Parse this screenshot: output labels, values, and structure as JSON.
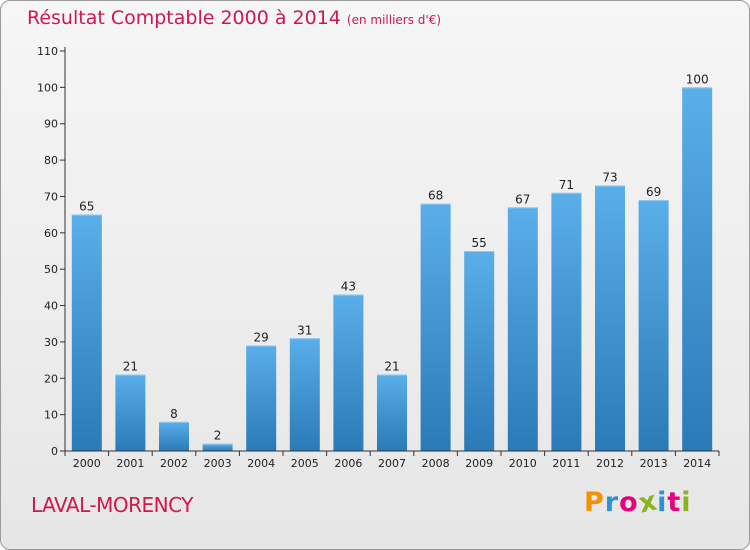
{
  "chart_data": {
    "type": "bar",
    "title": "Résultat Comptable 2000 à 2014",
    "subtitle": "(en milliers d'€)",
    "categories": [
      "2000",
      "2001",
      "2002",
      "2003",
      "2004",
      "2005",
      "2006",
      "2007",
      "2008",
      "2009",
      "2010",
      "2011",
      "2012",
      "2013",
      "2014"
    ],
    "values": [
      65,
      21,
      8,
      2,
      29,
      31,
      43,
      21,
      68,
      55,
      67,
      71,
      73,
      69,
      100
    ],
    "ylim": [
      0,
      110
    ],
    "yticks": [
      0,
      10,
      20,
      30,
      40,
      50,
      60,
      70,
      80,
      90,
      100,
      110
    ],
    "xlabel": "",
    "ylabel": "",
    "grid": false
  },
  "commune": "LAVAL-MORENCY",
  "logo": {
    "text": "Proxiti",
    "letter_colors": [
      "#f39200",
      "#2f8fd8",
      "#e6007e",
      "#88b51f",
      "#2f8fd8",
      "#e6007e",
      "#88b51f"
    ]
  },
  "colors": {
    "title": "#d0174f",
    "bar_top": "#5aaee9",
    "bar_bottom": "#2a7ab8",
    "axis": "#333333"
  }
}
